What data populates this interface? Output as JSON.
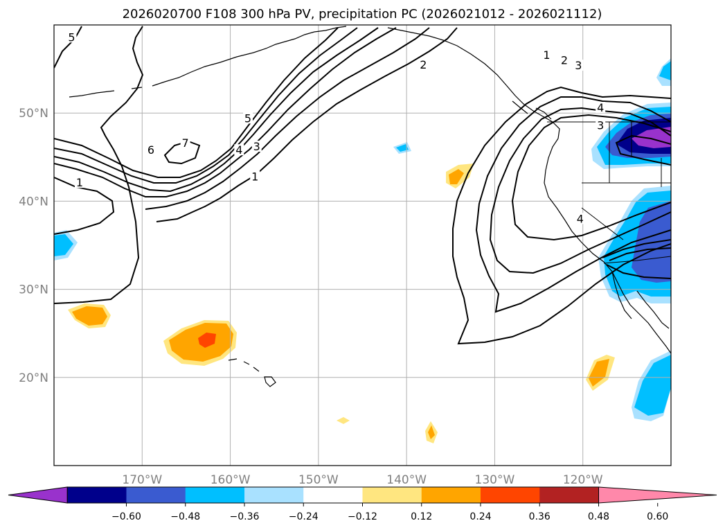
{
  "title": "2026020700 F108 300 hPa PV, precipitation PC (2026021012 - 2026021112)",
  "map": {
    "lon_range": [
      -180,
      -110
    ],
    "lat_range": [
      10,
      60
    ],
    "lat_ticks": [
      {
        "value": 50,
        "label": "50°N"
      },
      {
        "value": 40,
        "label": "40°N"
      },
      {
        "value": 30,
        "label": "30°N"
      },
      {
        "value": 20,
        "label": "20°N"
      }
    ],
    "lon_ticks": [
      {
        "value": -170,
        "label": "170°W"
      },
      {
        "value": -160,
        "label": "160°W"
      },
      {
        "value": -150,
        "label": "150°W"
      },
      {
        "value": -140,
        "label": "140°W"
      },
      {
        "value": -130,
        "label": "130°W"
      },
      {
        "value": -120,
        "label": "120°W"
      }
    ],
    "contour_labels": [
      {
        "text": "5",
        "lon": -178.0,
        "lat": 58.4
      },
      {
        "text": "2",
        "lon": -138.1,
        "lat": 55.3
      },
      {
        "text": "1",
        "lon": -124.1,
        "lat": 56.4
      },
      {
        "text": "2",
        "lon": -122.1,
        "lat": 55.8
      },
      {
        "text": "3",
        "lon": -120.5,
        "lat": 55.2
      },
      {
        "text": "4",
        "lon": -118.0,
        "lat": 50.4
      },
      {
        "text": "3",
        "lon": -118.0,
        "lat": 48.4
      },
      {
        "text": "5",
        "lon": -158.0,
        "lat": 49.2
      },
      {
        "text": "7",
        "lon": -165.1,
        "lat": 46.4
      },
      {
        "text": "6",
        "lon": -169.0,
        "lat": 45.6
      },
      {
        "text": "4",
        "lon": -159.0,
        "lat": 45.6
      },
      {
        "text": "3",
        "lon": -157.0,
        "lat": 46.0
      },
      {
        "text": "1",
        "lon": -157.2,
        "lat": 42.6
      },
      {
        "text": "1",
        "lon": -177.1,
        "lat": 41.9
      },
      {
        "text": "4",
        "lon": -120.3,
        "lat": 37.8
      }
    ]
  },
  "colorbar": {
    "levels": [
      -0.6,
      -0.48,
      -0.36,
      -0.24,
      -0.12,
      0.12,
      0.24,
      0.36,
      0.48,
      0.6
    ],
    "tick_labels": [
      "−0.60",
      "−0.48",
      "−0.36",
      "−0.24",
      "−0.12",
      "0.12",
      "0.24",
      "0.36",
      "0.48",
      "0.60"
    ],
    "colors": [
      "#9932cc",
      "#00008b",
      "#3a5bd0",
      "#00bfff",
      "#a9e1ff",
      "#ffffff",
      "#ffe680",
      "#ffa500",
      "#ff4500",
      "#b22222",
      "#ff88aa"
    ]
  }
}
